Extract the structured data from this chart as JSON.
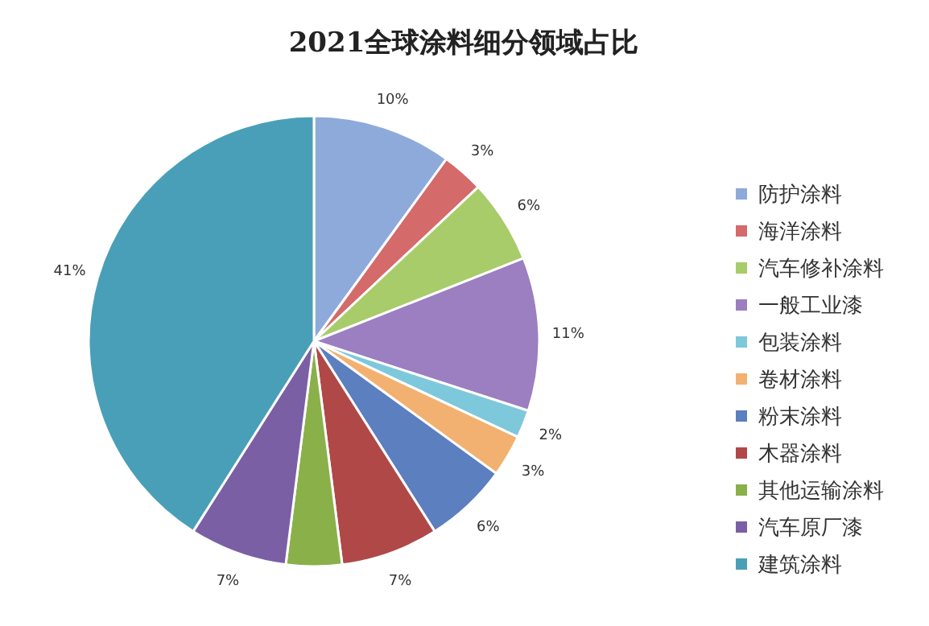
{
  "chart_data": {
    "type": "pie",
    "title": "2021全球涂料细分领域占比",
    "categories": [
      "防护涂料",
      "海洋涂料",
      "汽车修补涂料",
      "一般工业漆",
      "包装涂料",
      "卷材涂料",
      "粉末涂料",
      "木器涂料",
      "其他运输涂料",
      "汽车原厂漆",
      "建筑涂料"
    ],
    "values": [
      10,
      3,
      6,
      11,
      2,
      3,
      6,
      7,
      4,
      7,
      41
    ],
    "value_labels": [
      "10%",
      "3%",
      "6%",
      "11%",
      "2%",
      "3%",
      "6%",
      "7%",
      null,
      "7%",
      "41%"
    ],
    "colors": [
      "#8eaadb",
      "#d46a6a",
      "#a8cc6a",
      "#9b7fc0",
      "#7ec8dc",
      "#f2b170",
      "#5b7fbf",
      "#b04848",
      "#8ab04a",
      "#7b5fa5",
      "#4a9fb8"
    ],
    "legend": "right"
  }
}
